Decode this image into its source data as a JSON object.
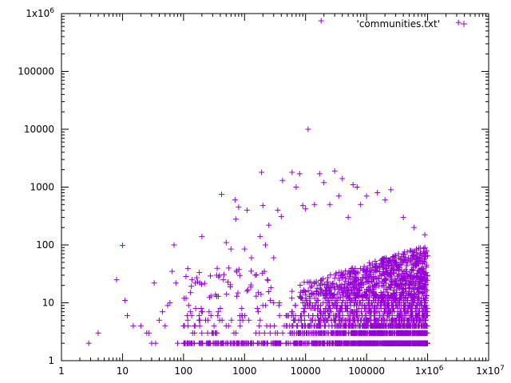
{
  "chart_data": {
    "type": "scatter",
    "title": "",
    "xlabel": "",
    "ylabel": "",
    "x_scale": "log",
    "y_scale": "log",
    "xlim": [
      1,
      10000000
    ],
    "ylim": [
      1,
      1000000
    ],
    "x_ticks": [
      {
        "value": 1,
        "label": "1"
      },
      {
        "value": 10,
        "label": "10"
      },
      {
        "value": 100,
        "label": "100"
      },
      {
        "value": 1000,
        "label": "1000"
      },
      {
        "value": 10000,
        "label": "10000"
      },
      {
        "value": 100000,
        "label": "100000"
      },
      {
        "value": 1000000,
        "label": "1x10^6"
      },
      {
        "value": 10000000,
        "label": "1x10^7"
      }
    ],
    "y_ticks": [
      {
        "value": 1,
        "label": "1"
      },
      {
        "value": 10,
        "label": "10"
      },
      {
        "value": 100,
        "label": "100"
      },
      {
        "value": 1000,
        "label": "1000"
      },
      {
        "value": 10000,
        "label": "10000"
      },
      {
        "value": 100000,
        "label": "100000"
      },
      {
        "value": 1000000,
        "label": "1x10^6"
      }
    ],
    "grid": false,
    "legend_position": "top-right",
    "series": [
      {
        "name": "'communities.txt'",
        "color": "#9400d3",
        "marker": "plus",
        "points": [
          [
            2.8,
            2
          ],
          [
            4,
            3
          ],
          [
            8,
            25
          ],
          [
            10,
            98
          ],
          [
            11,
            11
          ],
          [
            12,
            6
          ],
          [
            15,
            4
          ],
          [
            20,
            4
          ],
          [
            25,
            3
          ],
          [
            27,
            3
          ],
          [
            30,
            2
          ],
          [
            33,
            22
          ],
          [
            35,
            2
          ],
          [
            40,
            5
          ],
          [
            45,
            7
          ],
          [
            50,
            4
          ],
          [
            55,
            9
          ],
          [
            60,
            10
          ],
          [
            65,
            35
          ],
          [
            70,
            100
          ],
          [
            75,
            22
          ],
          [
            80,
            2
          ],
          [
            100,
            4
          ],
          [
            110,
            12
          ],
          [
            130,
            15
          ],
          [
            150,
            4
          ],
          [
            180,
            5
          ],
          [
            200,
            140
          ],
          [
            250,
            5
          ],
          [
            300,
            3
          ],
          [
            350,
            30
          ],
          [
            400,
            8
          ],
          [
            420,
            750
          ],
          [
            450,
            25
          ],
          [
            500,
            110
          ],
          [
            550,
            40
          ],
          [
            600,
            85
          ],
          [
            700,
            600
          ],
          [
            720,
            280
          ],
          [
            800,
            450
          ],
          [
            1000,
            85
          ],
          [
            1100,
            400
          ],
          [
            1300,
            60
          ],
          [
            1500,
            30
          ],
          [
            1800,
            140
          ],
          [
            1900,
            1800
          ],
          [
            2000,
            480
          ],
          [
            2200,
            100
          ],
          [
            2500,
            220
          ],
          [
            3000,
            60
          ],
          [
            3500,
            400
          ],
          [
            4000,
            310
          ],
          [
            4200,
            1300
          ],
          [
            6000,
            1800
          ],
          [
            7000,
            1000
          ],
          [
            8000,
            1700
          ],
          [
            9000,
            480
          ],
          [
            10000,
            420
          ],
          [
            11000,
            10000
          ],
          [
            14000,
            500
          ],
          [
            17000,
            1700
          ],
          [
            20000,
            1200
          ],
          [
            25000,
            500
          ],
          [
            30000,
            1900
          ],
          [
            35000,
            700
          ],
          [
            40000,
            1400
          ],
          [
            50000,
            300
          ],
          [
            60000,
            1100
          ],
          [
            70000,
            1000
          ],
          [
            80000,
            500
          ],
          [
            100000,
            700
          ],
          [
            150000,
            800
          ],
          [
            200000,
            600
          ],
          [
            250000,
            900
          ],
          [
            400000,
            300
          ],
          [
            600000,
            200
          ],
          [
            900000,
            150
          ],
          [
            18000,
            750000
          ],
          [
            3200000,
            700000
          ]
        ]
      }
    ],
    "dense_region": {
      "series": 0,
      "x_range": [
        4000,
        1000000
      ],
      "y_range": [
        2,
        100
      ]
    }
  },
  "legend": {
    "label": "'communities.txt'"
  },
  "tick_text": {
    "x_1e6_base": "1x10",
    "x_1e6_exp": "6",
    "x_1e7_base": "1x10",
    "x_1e7_exp": "7",
    "y_1e6_base": "1x10",
    "y_1e6_exp": "6"
  }
}
